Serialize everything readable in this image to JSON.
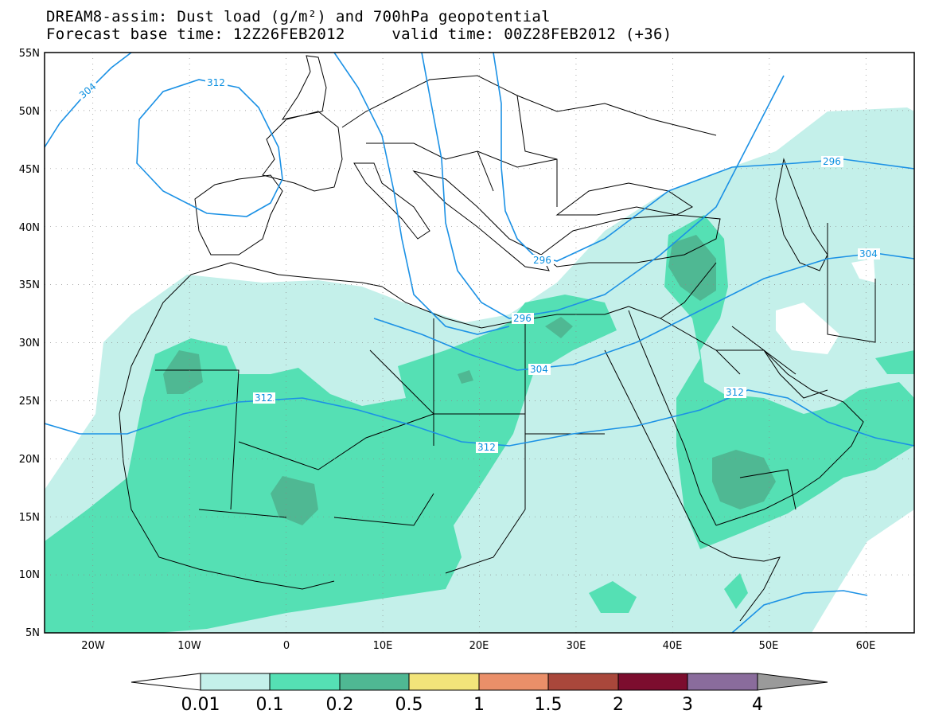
{
  "header": {
    "title_line1": "DREAM8-assim: Dust load (g/m²) and 700hPa geopotential",
    "title_line2": "Forecast base time: 12Z26FEB2012     valid time: 00Z28FEB2012 (+36)"
  },
  "map": {
    "lon_range": [
      -25,
      65
    ],
    "lat_range": [
      5,
      55
    ],
    "lat_labels": [
      "55N",
      "50N",
      "45N",
      "40N",
      "35N",
      "30N",
      "25N",
      "20N",
      "15N",
      "10N",
      "5N"
    ],
    "lon_labels": [
      "20W",
      "10W",
      "0",
      "10E",
      "20E",
      "30E",
      "40E",
      "50E",
      "60E"
    ],
    "contour_labels": [
      "304",
      "312",
      "296",
      "296",
      "304",
      "312",
      "312",
      "296",
      "304",
      "312"
    ]
  },
  "colorbar": {
    "labels": [
      "0.01",
      "0.1",
      "0.2",
      "0.5",
      "1",
      "1.5",
      "2",
      "3",
      "4"
    ],
    "colors": [
      "#c4f0ea",
      "#55e0b4",
      "#4fb893",
      "#f2e47a",
      "#ea8f69",
      "#a9473b",
      "#7c0d2e",
      "#8a6c9c",
      "#9a9a9a"
    ],
    "under_color": "#ffffff"
  },
  "colors": {
    "contour": "#1b91e5",
    "border": "#000000",
    "dust_low": "#c4f0ea",
    "dust_mid": "#55e0b4",
    "dust_high": "#4fb893"
  }
}
